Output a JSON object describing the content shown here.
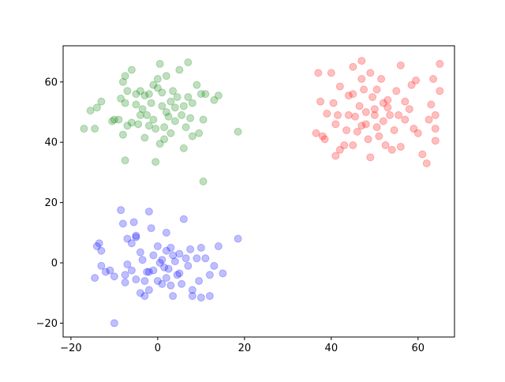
{
  "chart_data": {
    "type": "scatter",
    "xlim": [
      -21.8,
      68.4
    ],
    "ylim": [
      -24.6,
      72.0
    ],
    "xticks": [
      {
        "value": -20,
        "label": "−20"
      },
      0,
      20,
      40,
      60
    ],
    "yticks": [
      {
        "value": -20,
        "label": "−20"
      },
      0,
      20,
      40,
      60
    ],
    "alpha": 0.25,
    "series": [
      {
        "color": "#008000",
        "x": [
          -17,
          -14.5,
          -15.5,
          -14,
          -13,
          -10,
          -10.5,
          -9,
          -8.5,
          -8,
          -7.5,
          -7,
          -7.5,
          -8,
          -7.5,
          -7,
          -6,
          -6,
          -5,
          -5,
          -4.5,
          -4,
          -3.5,
          -3,
          -3,
          -2.5,
          -2,
          -1.5,
          -1,
          -1,
          -0.5,
          -0.5,
          0,
          0,
          0.5,
          0.5,
          1,
          1,
          1.5,
          1.5,
          2,
          2.5,
          3,
          3,
          3.5,
          4,
          4.5,
          5,
          5.5,
          6,
          6,
          7,
          7,
          7.5,
          8,
          8,
          9,
          9.5,
          10,
          10.5,
          10.5,
          11,
          13,
          14,
          18.5,
          6.5,
          4,
          2,
          -2,
          -4
        ],
        "values": [
          44.5,
          44.5,
          50.5,
          51.5,
          53.5,
          47.5,
          47,
          47.5,
          54.5,
          60,
          62,
          57,
          53,
          42.5,
          34,
          45.5,
          46.5,
          64,
          56,
          52.5,
          46,
          57,
          51,
          55.5,
          41.5,
          49,
          45.5,
          53,
          59,
          47.5,
          44.5,
          33.5,
          58,
          61,
          66,
          39.5,
          56.5,
          52,
          45,
          41,
          62,
          48.5,
          53.5,
          43,
          57,
          47,
          55,
          64,
          49,
          38,
          52,
          66.5,
          55,
          48,
          42,
          53,
          59,
          43,
          56,
          47.5,
          27,
          56,
          54,
          55.5,
          43.5,
          45,
          51.5,
          50,
          56,
          49
        ]
      },
      {
        "color": "#ff0000",
        "x": [
          36.5,
          37,
          37.5,
          38,
          38.5,
          39,
          40,
          40.5,
          41,
          41,
          41.5,
          42,
          42,
          43,
          43.5,
          44,
          44,
          45,
          45,
          45,
          45.5,
          46,
          46.5,
          47,
          47,
          47,
          47.5,
          48,
          48,
          48.5,
          49,
          49,
          49.5,
          50,
          50.5,
          50.5,
          51,
          51.5,
          52,
          52,
          52.5,
          53,
          53.5,
          54,
          54.5,
          55,
          55.5,
          56,
          56,
          57,
          57,
          58,
          58.5,
          59,
          59.5,
          60,
          61,
          62,
          62.5,
          63,
          63.5,
          64,
          64,
          64,
          65,
          65,
          53,
          50
        ],
        "values": [
          43,
          63,
          53.5,
          42,
          41,
          49.5,
          63,
          53,
          46,
          35.5,
          49,
          37.5,
          58.5,
          39,
          44,
          55.5,
          49,
          65,
          56,
          39,
          48.5,
          43.5,
          52,
          67,
          61,
          45.5,
          57.5,
          50,
          46,
          41,
          63,
          35,
          55,
          51,
          57.5,
          45,
          42,
          61,
          53,
          47,
          39,
          54,
          49,
          37.5,
          44,
          57,
          49,
          65.5,
          38.5,
          53.5,
          47.5,
          51,
          59,
          44.5,
          60.5,
          43,
          36,
          33,
          47.5,
          52.5,
          61,
          40.5,
          44.5,
          49,
          57,
          66,
          51.5,
          49
        ]
      },
      {
        "color": "#0000ff",
        "x": [
          -14.5,
          -14,
          -13.5,
          -13,
          -13,
          -12,
          -11,
          -10,
          -10,
          -8.5,
          -8,
          -7.5,
          -7.5,
          -7,
          -7,
          -6,
          -6,
          -5.5,
          -5,
          -5,
          -4,
          -4,
          -3.5,
          -3,
          -3,
          -2.5,
          -2,
          -2,
          -1.5,
          -1,
          -1,
          0,
          0,
          0.5,
          1,
          1.5,
          2,
          2,
          2.5,
          3,
          3,
          3.5,
          3.5,
          4,
          4.5,
          5,
          5,
          5.5,
          6,
          6.5,
          7,
          7.5,
          8,
          8,
          9,
          9.5,
          10,
          10,
          11,
          12,
          12,
          13,
          14,
          15,
          18.5,
          1,
          2,
          -2,
          -5
        ],
        "values": [
          -5,
          5.5,
          6.5,
          -1,
          4,
          -3,
          -2.5,
          -4.5,
          -20,
          17.5,
          13,
          -6.5,
          -4,
          8,
          -0.5,
          6.5,
          -2.5,
          13.5,
          9,
          -5.5,
          3.5,
          -10,
          1,
          -6,
          -11,
          -3,
          17,
          -3,
          11.5,
          2.5,
          -2.5,
          5.5,
          -6,
          0,
          -7,
          -1.5,
          10,
          4,
          -2,
          5,
          -7.5,
          2.5,
          -11,
          0.5,
          -4,
          3,
          -3.5,
          -7,
          14.5,
          1.5,
          -1,
          4.5,
          -9,
          -11,
          1.5,
          -6,
          5,
          -11.5,
          1.5,
          -4,
          -11,
          -1,
          5.5,
          -3.5,
          8,
          1,
          -5,
          -9,
          8.5
        ]
      }
    ]
  }
}
